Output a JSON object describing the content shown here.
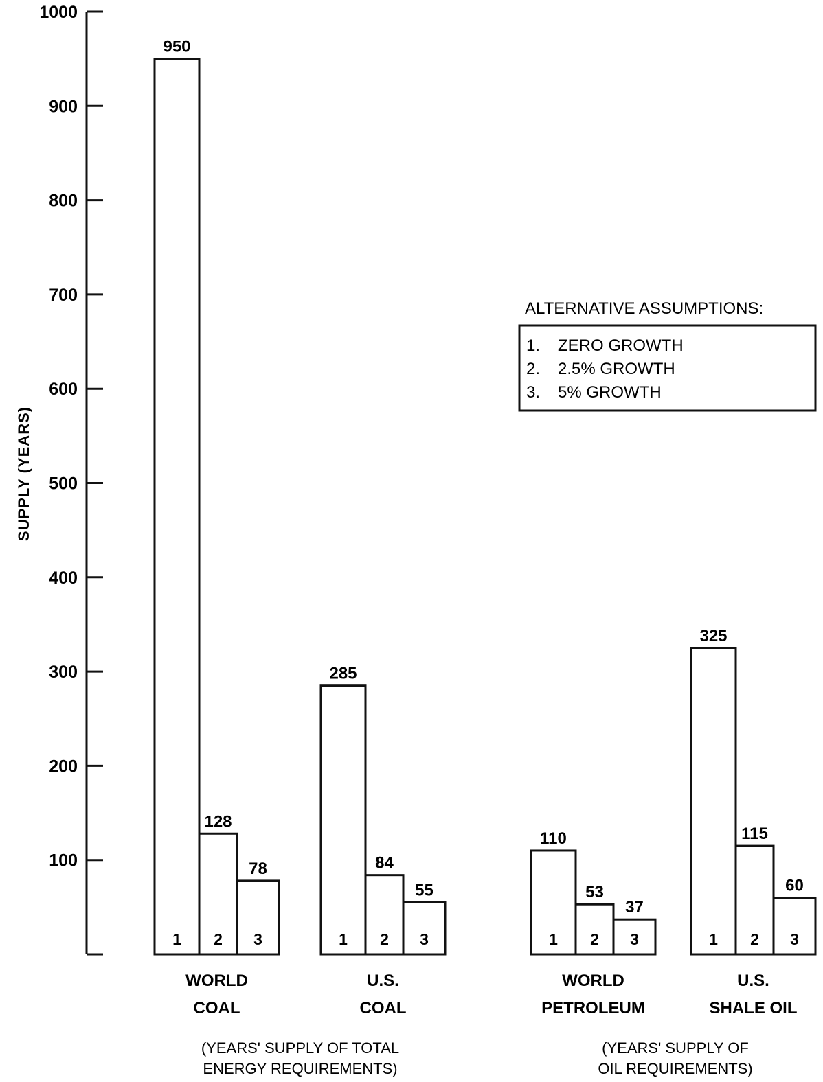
{
  "chart_data": {
    "type": "bar",
    "ylabel": "SUPPLY (YEARS)",
    "ylim": [
      0,
      1000
    ],
    "yticks": [
      100,
      200,
      300,
      400,
      500,
      600,
      700,
      800,
      900,
      1000
    ],
    "grid": false,
    "legend": {
      "title": "ALTERNATIVE ASSUMPTIONS:",
      "position": "right",
      "items": [
        {
          "num": "1.",
          "label": "ZERO GROWTH"
        },
        {
          "num": "2.",
          "label": "2.5% GROWTH"
        },
        {
          "num": "3.",
          "label": "5% GROWTH"
        }
      ]
    },
    "series_ids": [
      "1",
      "2",
      "3"
    ],
    "groups": [
      {
        "line1": "WORLD",
        "line2": "COAL",
        "values": [
          950,
          128,
          78
        ]
      },
      {
        "line1": "U.S.",
        "line2": "COAL",
        "values": [
          285,
          84,
          55
        ]
      },
      {
        "line1": "WORLD",
        "line2": "PETROLEUM",
        "values": [
          110,
          53,
          37
        ]
      },
      {
        "line1": "U.S.",
        "line2": "SHALE OIL",
        "values": [
          325,
          115,
          60
        ]
      }
    ],
    "notes": [
      {
        "line1": "(YEARS' SUPPLY OF TOTAL",
        "line2": "ENERGY REQUIREMENTS)"
      },
      {
        "line1": "(YEARS' SUPPLY OF",
        "line2": "OIL REQUIREMENTS)"
      }
    ]
  }
}
